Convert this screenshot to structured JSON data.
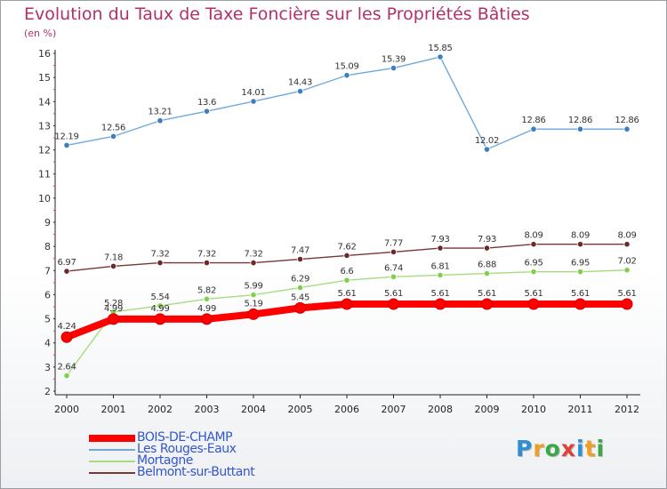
{
  "chart_data": {
    "type": "line",
    "title": "Evolution du Taux de Taxe Foncière sur les Propriétés Bâties",
    "ylabel": "(en %)",
    "xlabel": "",
    "x": [
      "2000",
      "2001",
      "2002",
      "2003",
      "2004",
      "2005",
      "2006",
      "2007",
      "2008",
      "2009",
      "2010",
      "2011",
      "2012"
    ],
    "ylim": [
      2,
      16
    ],
    "yticks": [
      "2",
      "3",
      "4",
      "5",
      "6",
      "7",
      "8",
      "9",
      "10",
      "11",
      "12",
      "13",
      "14",
      "15",
      "16"
    ],
    "grid": false,
    "legend_position": "bottom-left",
    "series": [
      {
        "name": "BOIS-DE-CHAMP",
        "color": "#ff0000",
        "style": "thick",
        "values": [
          4.24,
          4.99,
          4.99,
          4.99,
          5.19,
          5.45,
          5.61,
          5.61,
          5.61,
          5.61,
          5.61,
          5.61,
          5.61
        ],
        "labels": [
          "4.24",
          "4.99",
          "4.99",
          "4.99",
          "5.19",
          "5.45",
          "5.61",
          "5.61",
          "5.61",
          "5.61",
          "5.61",
          "5.61",
          "5.61"
        ]
      },
      {
        "name": "Les Rouges-Eaux",
        "color": "#6fa8dc",
        "marker": "#3a7fc0",
        "values": [
          12.19,
          12.56,
          13.21,
          13.6,
          14.01,
          14.43,
          15.09,
          15.39,
          15.85,
          12.02,
          12.86,
          12.86,
          12.86
        ],
        "labels": [
          "12.19",
          "12.56",
          "13.21",
          "13.6",
          "14.01",
          "14.43",
          "15.09",
          "15.39",
          "15.85",
          "12.02",
          "12.86",
          "12.86",
          "12.86"
        ]
      },
      {
        "name": "Mortagne",
        "color": "#a6dc7e",
        "marker": "#7ed04a",
        "values": [
          2.64,
          5.28,
          5.54,
          5.82,
          5.99,
          6.29,
          6.6,
          6.74,
          6.81,
          6.88,
          6.95,
          6.95,
          7.02
        ],
        "labels": [
          "2.64",
          "5.28",
          "5.54",
          "5.82",
          "5.99",
          "6.29",
          "6.6",
          "6.74",
          "6.81",
          "6.88",
          "6.95",
          "6.95",
          "7.02"
        ]
      },
      {
        "name": "Belmont-sur-Buttant",
        "color": "#7a3535",
        "marker": "#6a2a2a",
        "values": [
          6.97,
          7.18,
          7.32,
          7.32,
          7.32,
          7.47,
          7.62,
          7.77,
          7.93,
          7.93,
          8.09,
          8.09,
          8.09
        ],
        "labels": [
          "6.97",
          "7.18",
          "7.32",
          "7.32",
          "7.32",
          "7.47",
          "7.62",
          "7.77",
          "7.93",
          "7.93",
          "8.09",
          "8.09",
          "8.09"
        ]
      }
    ]
  },
  "logo": {
    "letters": [
      "P",
      "r",
      "o",
      "x",
      "i",
      "t",
      "i"
    ],
    "colors": [
      "#2e8fd6",
      "#f0a020",
      "#3aa84a",
      "#e0423a",
      "#2e8fd6",
      "#f0a020",
      "#3aa84a"
    ]
  }
}
